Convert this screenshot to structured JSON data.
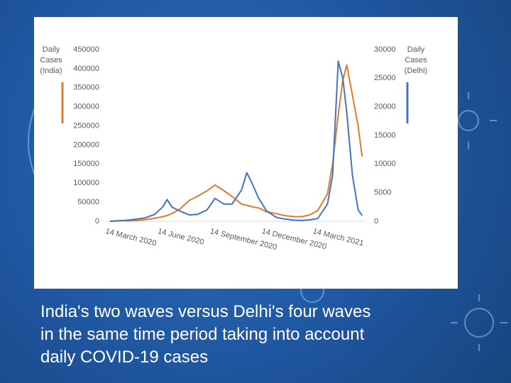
{
  "chart_data": {
    "type": "line",
    "ylabel": [
      "Daily",
      "Cases",
      "(India)"
    ],
    "y2label": [
      "Daily",
      "Cases",
      "(Delhi)"
    ],
    "x": [
      "2020-03-14",
      "2020-04-01",
      "2020-04-15",
      "2020-05-01",
      "2020-05-15",
      "2020-06-01",
      "2020-06-15",
      "2020-06-23",
      "2020-07-01",
      "2020-07-15",
      "2020-08-01",
      "2020-08-15",
      "2020-09-01",
      "2020-09-15",
      "2020-10-01",
      "2020-10-15",
      "2020-11-01",
      "2020-11-10",
      "2020-11-20",
      "2020-12-01",
      "2020-12-15",
      "2021-01-01",
      "2021-01-15",
      "2021-02-01",
      "2021-02-15",
      "2021-03-01",
      "2021-03-15",
      "2021-04-01",
      "2021-04-10",
      "2021-04-20",
      "2021-04-28",
      "2021-05-05",
      "2021-05-15",
      "2021-05-25",
      "2021-06-01"
    ],
    "series": [
      {
        "color": "#e07b2a",
        "axis": "y",
        "values": [
          100,
          2000,
          1000,
          2500,
          4000,
          8000,
          12000,
          15000,
          20000,
          32000,
          55000,
          65000,
          80000,
          95000,
          80000,
          65000,
          45000,
          42000,
          38000,
          35000,
          25000,
          20000,
          15000,
          12000,
          12000,
          17000,
          28000,
          72000,
          150000,
          280000,
          370000,
          410000,
          330000,
          250000,
          170000
        ]
      },
      {
        "color": "#4472c4",
        "axis": "y2",
        "values": [
          0,
          100,
          200,
          400,
          600,
          1200,
          2500,
          3800,
          2500,
          1800,
          1100,
          1200,
          2000,
          4000,
          3000,
          3000,
          5500,
          8500,
          6500,
          4000,
          1800,
          700,
          400,
          200,
          150,
          250,
          500,
          3000,
          8000,
          28000,
          25000,
          19000,
          8000,
          2000,
          1000
        ]
      }
    ],
    "xlim": [
      "2020-03-08",
      "2021-06-07"
    ],
    "xticks": [
      {
        "value": "2020-03-14",
        "label": "14 March 2020"
      },
      {
        "value": "2020-06-14",
        "label": "14 June 2020"
      },
      {
        "value": "2020-09-14",
        "label": "14 September 2020"
      },
      {
        "value": "2020-12-14",
        "label": "14 December 2020"
      },
      {
        "value": "2021-03-14",
        "label": "14 March 2021"
      }
    ],
    "ylim": [
      0,
      450000
    ],
    "yticks": [
      0,
      50000,
      100000,
      150000,
      200000,
      250000,
      300000,
      350000,
      400000,
      450000
    ],
    "y2lim": [
      0,
      30000
    ],
    "y2ticks": [
      0,
      5000,
      10000,
      15000,
      20000,
      25000,
      30000
    ]
  },
  "caption": [
    "India's two waves versus Delhi's four waves",
    "in the same time period taking into account",
    "daily COVID-19 cases"
  ]
}
